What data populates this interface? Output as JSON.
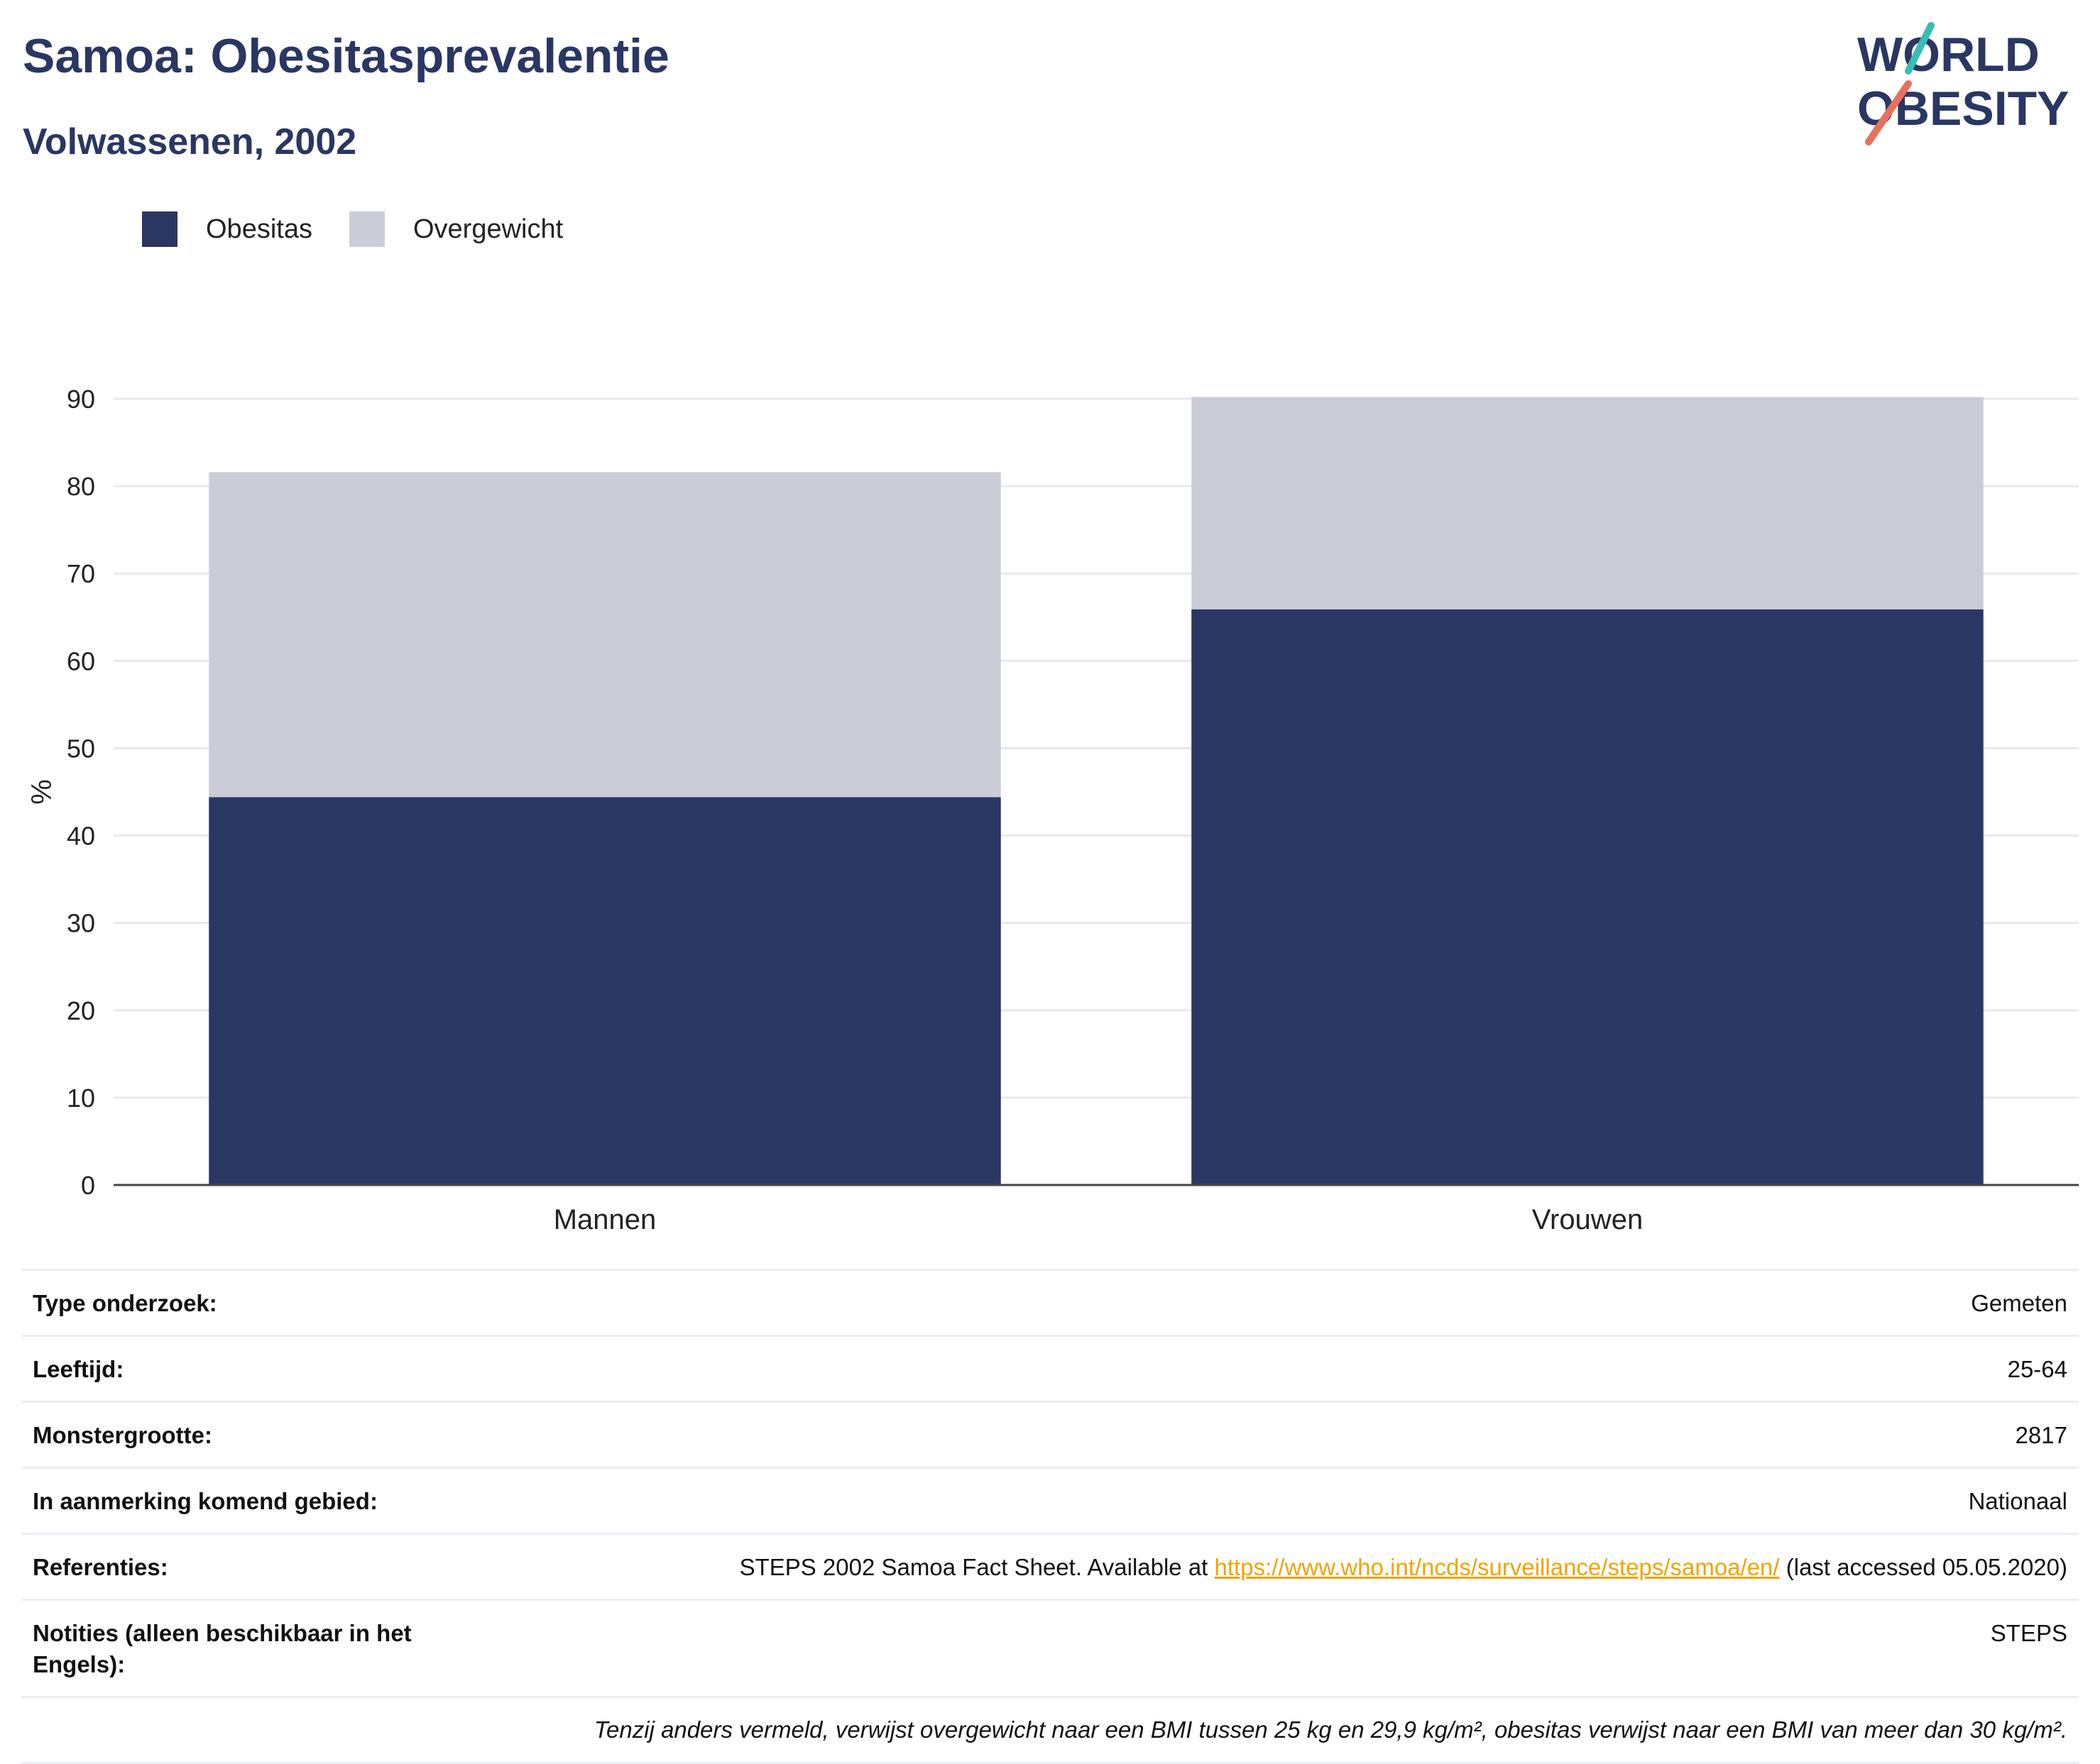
{
  "header": {
    "title": "Samoa: Obesitasprevalentie",
    "subtitle": "Volwassenen, 2002",
    "logo_line1": "WORLD",
    "logo_line2": "OBESITY"
  },
  "colors": {
    "obesity": "#2a3763",
    "overweight": "#cacdd8",
    "title": "#2a3763",
    "link": "#f0a400",
    "logo_teal": "#3bbcb4",
    "logo_coral": "#e8705f"
  },
  "legend": [
    {
      "label": "Obesitas",
      "color": "#2a3763"
    },
    {
      "label": "Overgewicht",
      "color": "#cacdd8"
    }
  ],
  "chart_data": {
    "type": "bar",
    "stacked": true,
    "categories": [
      "Mannen",
      "Vrouwen"
    ],
    "series": [
      {
        "name": "Obesitas",
        "values": [
          44.4,
          65.9
        ]
      },
      {
        "name": "Overgewicht",
        "values": [
          37.2,
          24.3
        ]
      }
    ],
    "ylabel": "%",
    "ylim": [
      0,
      90
    ],
    "yticks": [
      0,
      10,
      20,
      30,
      40,
      50,
      60,
      70,
      80,
      90
    ],
    "grid": true,
    "legend_position": "top-left"
  },
  "info": {
    "rows": [
      {
        "key": "Type onderzoek:",
        "value": "Gemeten"
      },
      {
        "key": "Leeftijd:",
        "value": "25-64"
      },
      {
        "key": "Monstergrootte:",
        "value": "2817"
      },
      {
        "key": "In aanmerking komend gebied:",
        "value": "Nationaal"
      }
    ],
    "references": {
      "key": "Referenties:",
      "pre": "STEPS 2002 Samoa Fact Sheet. Available at ",
      "link": "https://www.who.int/ncds/surveillance/steps/samoa/en/",
      "post": " (last accessed 05.05.2020)"
    },
    "notes": {
      "key": "Notities (alleen beschikbaar in het Engels):",
      "value": "STEPS"
    },
    "footnote": "Tenzij anders vermeld, verwijst overgewicht naar een BMI tussen 25 kg en 29,9 kg/m², obesitas verwijst naar een BMI van meer dan 30 kg/m²."
  }
}
